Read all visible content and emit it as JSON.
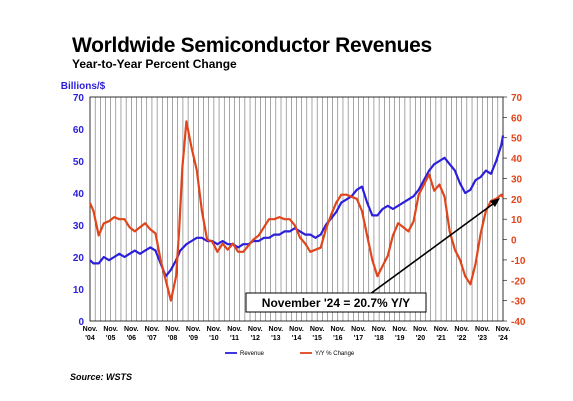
{
  "title": "Worldwide Semiconductor Revenues",
  "subtitle": "Year-to-Year Percent Change",
  "source": "Source: WSTS",
  "chart_data": {
    "type": "line",
    "left_axis_label": "Billions/$",
    "left_ticks": [
      "0",
      "10",
      "20",
      "30",
      "40",
      "50",
      "60",
      "70"
    ],
    "right_ticks": [
      "-40",
      "-30",
      "-20",
      "-10",
      "0",
      "10",
      "20",
      "30",
      "40",
      "50",
      "60",
      "70"
    ],
    "x_tick_labels": [
      [
        "Nov.",
        "'04"
      ],
      [
        "Nov.",
        "'05"
      ],
      [
        "Nov.",
        "'06"
      ],
      [
        "Nov.",
        "'07"
      ],
      [
        "Nov.",
        "'08"
      ],
      [
        "Nov.",
        "'09"
      ],
      [
        "Nov.",
        "'10"
      ],
      [
        "Nov.",
        "'11"
      ],
      [
        "Nov.",
        "'12"
      ],
      [
        "Nov.",
        "'13"
      ],
      [
        "Nov.",
        "'14"
      ],
      [
        "Nov.",
        "'15"
      ],
      [
        "Nov.",
        "'16"
      ],
      [
        "Nov.",
        "'17"
      ],
      [
        "Nov.",
        "'18"
      ],
      [
        "Nov.",
        "'19"
      ],
      [
        "Nov.",
        "'20"
      ],
      [
        "Nov.",
        "'21"
      ],
      [
        "Nov.",
        "'22"
      ],
      [
        "Nov.",
        "'23"
      ],
      [
        "Nov.",
        "'24"
      ]
    ],
    "ylim_left": [
      0,
      70
    ],
    "ylim_right": [
      -40,
      70
    ],
    "grid": "vertical",
    "legend_position": "bottom-center",
    "annotation": "November '24 = 20.7% Y/Y",
    "series": [
      {
        "name": "Revenue",
        "axis": "left",
        "color": "#2b1fdc",
        "x": [
          2004.83,
          2005.0,
          2005.25,
          2005.5,
          2005.75,
          2006.0,
          2006.25,
          2006.5,
          2006.75,
          2007.0,
          2007.25,
          2007.5,
          2007.75,
          2008.0,
          2008.25,
          2008.5,
          2008.75,
          2009.0,
          2009.2,
          2009.5,
          2009.75,
          2010.0,
          2010.25,
          2010.5,
          2010.75,
          2011.0,
          2011.25,
          2011.5,
          2011.75,
          2012.0,
          2012.25,
          2012.5,
          2012.75,
          2013.0,
          2013.25,
          2013.5,
          2013.75,
          2014.0,
          2014.25,
          2014.5,
          2014.75,
          2015.0,
          2015.25,
          2015.5,
          2015.75,
          2016.0,
          2016.25,
          2016.5,
          2016.75,
          2017.0,
          2017.25,
          2017.5,
          2017.75,
          2018.0,
          2018.25,
          2018.5,
          2018.75,
          2019.0,
          2019.25,
          2019.5,
          2019.75,
          2020.0,
          2020.25,
          2020.5,
          2020.75,
          2021.0,
          2021.25,
          2021.5,
          2021.75,
          2022.0,
          2022.25,
          2022.5,
          2022.75,
          2023.0,
          2023.25,
          2023.5,
          2023.75,
          2024.0,
          2024.25,
          2024.5,
          2024.75,
          2024.83
        ],
        "values": [
          19,
          18,
          18,
          20,
          19,
          20,
          21,
          20,
          21,
          22,
          21,
          22,
          23,
          22,
          18,
          14,
          16,
          19,
          22,
          24,
          25,
          26,
          26,
          25,
          25,
          24,
          25,
          24,
          24,
          23,
          24,
          24,
          25,
          25,
          26,
          26,
          27,
          27,
          28,
          28,
          29,
          28,
          27,
          27,
          26,
          27,
          30,
          32,
          34,
          37,
          38,
          39,
          41,
          42,
          37,
          33,
          33,
          35,
          36,
          35,
          36,
          37,
          38,
          39,
          41,
          44,
          47,
          49,
          50,
          51,
          49,
          47,
          43,
          40,
          41,
          44,
          45,
          47,
          46,
          50,
          55,
          58
        ]
      },
      {
        "name": "Y/Y % Change",
        "axis": "right",
        "color": "#e0451b",
        "x": [
          2004.83,
          2005.0,
          2005.25,
          2005.5,
          2005.75,
          2006.0,
          2006.25,
          2006.5,
          2006.75,
          2007.0,
          2007.25,
          2007.5,
          2007.75,
          2008.0,
          2008.25,
          2008.5,
          2008.75,
          2009.0,
          2009.15,
          2009.3,
          2009.5,
          2009.75,
          2010.0,
          2010.25,
          2010.5,
          2010.75,
          2011.0,
          2011.25,
          2011.5,
          2011.75,
          2012.0,
          2012.25,
          2012.5,
          2012.75,
          2013.0,
          2013.25,
          2013.5,
          2013.75,
          2014.0,
          2014.25,
          2014.5,
          2014.75,
          2015.0,
          2015.25,
          2015.5,
          2015.75,
          2016.0,
          2016.25,
          2016.5,
          2016.75,
          2017.0,
          2017.25,
          2017.5,
          2017.75,
          2018.0,
          2018.25,
          2018.5,
          2018.75,
          2019.0,
          2019.25,
          2019.5,
          2019.75,
          2020.0,
          2020.25,
          2020.5,
          2020.75,
          2021.0,
          2021.25,
          2021.5,
          2021.75,
          2022.0,
          2022.25,
          2022.5,
          2022.75,
          2023.0,
          2023.25,
          2023.5,
          2023.75,
          2024.0,
          2024.25,
          2024.5,
          2024.75,
          2024.83
        ],
        "values": [
          18,
          14,
          2,
          8,
          9,
          11,
          10,
          10,
          6,
          4,
          6,
          8,
          5,
          3,
          -10,
          -20,
          -30,
          -18,
          5,
          35,
          58,
          45,
          34,
          14,
          0,
          -1,
          -6,
          -2,
          -5,
          -2,
          -6,
          -6,
          -3,
          0,
          2,
          6,
          10,
          10,
          11,
          10,
          10,
          7,
          1,
          -2,
          -6,
          -5,
          -4,
          5,
          12,
          18,
          22,
          22,
          21,
          20,
          14,
          2,
          -10,
          -18,
          -13,
          -8,
          2,
          8,
          6,
          4,
          9,
          22,
          27,
          32,
          24,
          27,
          21,
          4,
          -5,
          -10,
          -18,
          -22,
          -12,
          3,
          14,
          19,
          20,
          22,
          20.7
        ]
      }
    ]
  }
}
